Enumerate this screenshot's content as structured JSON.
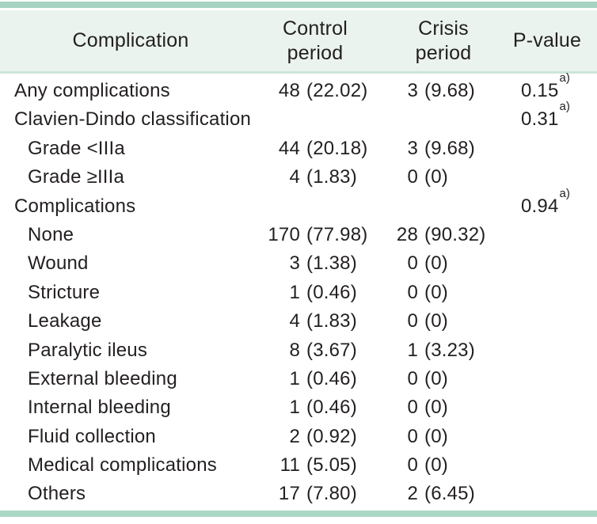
{
  "table_name": "complications-comparison-table",
  "colors": {
    "top_rule": "#a6d3c2",
    "header_bg": "#ebf3ee",
    "mid_rule": "#cde5d9",
    "bottom_rule": "#abd7c5",
    "text": "#231f20"
  },
  "header": {
    "complication": "Complication",
    "control": "Control\nperiod",
    "crisis": "Crisis\nperiod",
    "pvalue": "P-value"
  },
  "rows": [
    {
      "label": "Any complications",
      "indent": 0,
      "control": {
        "n": "48",
        "pct": "(22.02)"
      },
      "crisis": {
        "n": "3",
        "pct": "(9.68)"
      },
      "p": "0.15",
      "p_sup": "a)"
    },
    {
      "label": "Clavien-Dindo classification",
      "indent": 0,
      "control": null,
      "crisis": null,
      "p": "0.31",
      "p_sup": "a)"
    },
    {
      "label": "Grade <IIIa",
      "indent": 1,
      "control": {
        "n": "44",
        "pct": "(20.18)"
      },
      "crisis": {
        "n": "3",
        "pct": "(9.68)"
      },
      "p": null,
      "p_sup": null
    },
    {
      "label": "Grade ≥IIIa",
      "indent": 1,
      "control": {
        "n": "4",
        "pct": "(1.83)"
      },
      "crisis": {
        "n": "0",
        "pct": "(0)"
      },
      "p": null,
      "p_sup": null
    },
    {
      "label": "Complications",
      "indent": 0,
      "control": null,
      "crisis": null,
      "p": "0.94",
      "p_sup": "a)"
    },
    {
      "label": "None",
      "indent": 1,
      "control": {
        "n": "170",
        "pct": "(77.98)"
      },
      "crisis": {
        "n": "28",
        "pct": "(90.32)"
      },
      "p": null,
      "p_sup": null
    },
    {
      "label": "Wound",
      "indent": 1,
      "control": {
        "n": "3",
        "pct": "(1.38)"
      },
      "crisis": {
        "n": "0",
        "pct": "(0)"
      },
      "p": null,
      "p_sup": null
    },
    {
      "label": "Stricture",
      "indent": 1,
      "control": {
        "n": "1",
        "pct": "(0.46)"
      },
      "crisis": {
        "n": "0",
        "pct": "(0)"
      },
      "p": null,
      "p_sup": null
    },
    {
      "label": "Leakage",
      "indent": 1,
      "control": {
        "n": "4",
        "pct": "(1.83)"
      },
      "crisis": {
        "n": "0",
        "pct": "(0)"
      },
      "p": null,
      "p_sup": null
    },
    {
      "label": "Paralytic ileus",
      "indent": 1,
      "control": {
        "n": "8",
        "pct": "(3.67)"
      },
      "crisis": {
        "n": "1",
        "pct": "(3.23)"
      },
      "p": null,
      "p_sup": null
    },
    {
      "label": "External bleeding",
      "indent": 1,
      "control": {
        "n": "1",
        "pct": "(0.46)"
      },
      "crisis": {
        "n": "0",
        "pct": "(0)"
      },
      "p": null,
      "p_sup": null
    },
    {
      "label": "Internal bleeding",
      "indent": 1,
      "control": {
        "n": "1",
        "pct": "(0.46)"
      },
      "crisis": {
        "n": "0",
        "pct": "(0)"
      },
      "p": null,
      "p_sup": null
    },
    {
      "label": "Fluid collection",
      "indent": 1,
      "control": {
        "n": "2",
        "pct": "(0.92)"
      },
      "crisis": {
        "n": "0",
        "pct": "(0)"
      },
      "p": null,
      "p_sup": null
    },
    {
      "label": "Medical complications",
      "indent": 1,
      "control": {
        "n": "11",
        "pct": "(5.05)"
      },
      "crisis": {
        "n": "0",
        "pct": "(0)"
      },
      "p": null,
      "p_sup": null
    },
    {
      "label": "Others",
      "indent": 1,
      "control": {
        "n": "17",
        "pct": "(7.80)"
      },
      "crisis": {
        "n": "2",
        "pct": "(6.45)"
      },
      "p": null,
      "p_sup": null
    }
  ]
}
